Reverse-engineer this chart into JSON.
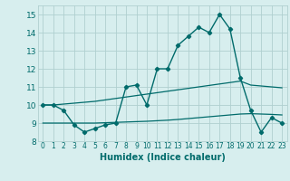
{
  "x": [
    0,
    1,
    2,
    3,
    4,
    5,
    6,
    7,
    8,
    9,
    10,
    11,
    12,
    13,
    14,
    15,
    16,
    17,
    18,
    19,
    20,
    21,
    22,
    23
  ],
  "main_y": [
    10.0,
    10.0,
    9.7,
    8.9,
    8.5,
    8.7,
    8.9,
    9.0,
    11.0,
    11.1,
    10.0,
    12.0,
    12.0,
    13.3,
    13.8,
    14.3,
    14.0,
    15.0,
    14.2,
    11.5,
    9.7,
    8.5,
    9.3,
    9.0
  ],
  "upper_y": [
    10.0,
    10.0,
    10.05,
    10.1,
    10.15,
    10.2,
    10.28,
    10.36,
    10.44,
    10.52,
    10.6,
    10.68,
    10.76,
    10.84,
    10.92,
    11.0,
    11.08,
    11.16,
    11.24,
    11.32,
    11.1,
    11.05,
    11.0,
    10.95
  ],
  "lower_y": [
    9.0,
    9.0,
    9.0,
    9.0,
    9.0,
    9.0,
    9.02,
    9.04,
    9.06,
    9.08,
    9.1,
    9.13,
    9.16,
    9.2,
    9.25,
    9.3,
    9.35,
    9.4,
    9.45,
    9.5,
    9.52,
    9.5,
    9.48,
    9.45
  ],
  "line_color": "#006b6b",
  "bg_color": "#d7eeee",
  "grid_color": "#b0d0d0",
  "xlabel": "Humidex (Indice chaleur)",
  "xlim": [
    -0.5,
    23.5
  ],
  "ylim": [
    8,
    15.5
  ],
  "yticks": [
    8,
    9,
    10,
    11,
    12,
    13,
    14,
    15
  ],
  "xticks": [
    0,
    1,
    2,
    3,
    4,
    5,
    6,
    7,
    8,
    9,
    10,
    11,
    12,
    13,
    14,
    15,
    16,
    17,
    18,
    19,
    20,
    21,
    22,
    23
  ]
}
